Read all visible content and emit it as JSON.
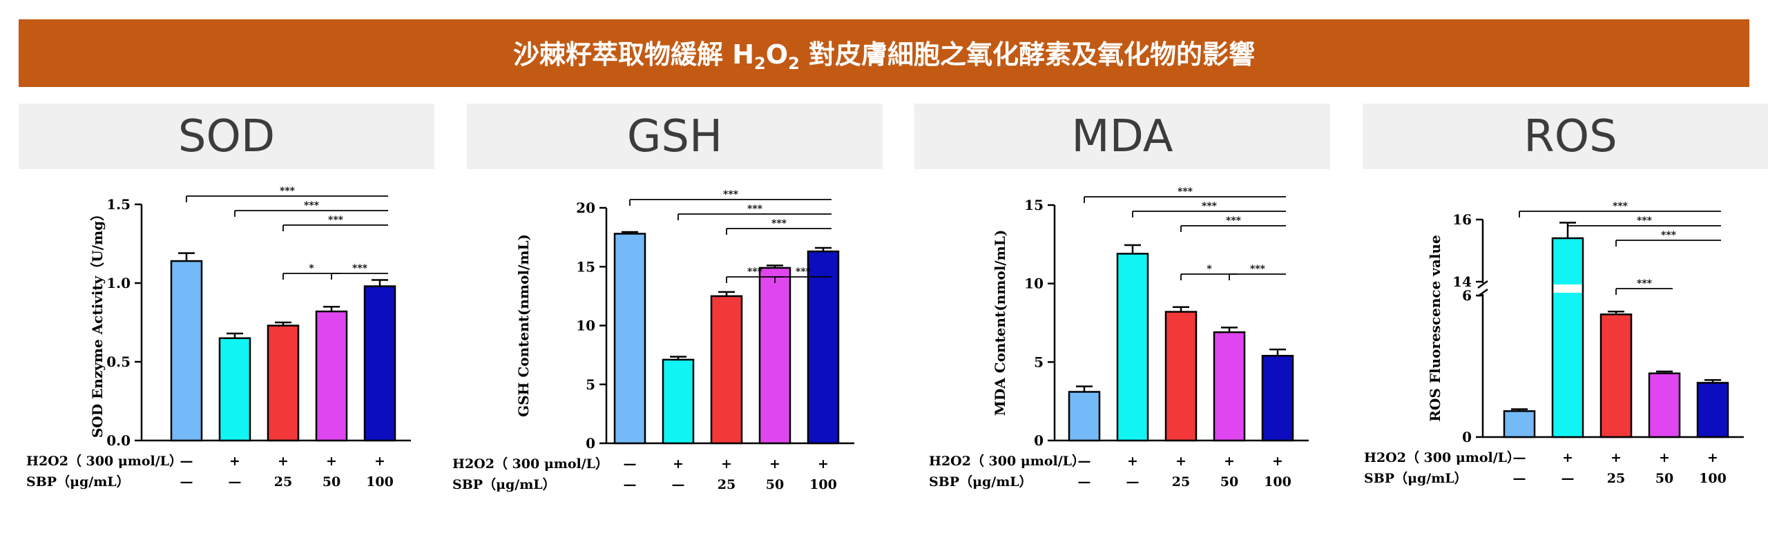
{
  "banner": {
    "title_pre": "沙棘籽萃取物緩解 H",
    "sub1": "2",
    "mid": "O",
    "sub2": "2",
    "title_post": " 對皮膚細胞之氧化酵素及氧化物的影響",
    "color": "#c25a14"
  },
  "panels": [
    {
      "title": "SOD"
    },
    {
      "title": "GSH"
    },
    {
      "title": "MDA"
    },
    {
      "title": "ROS"
    }
  ],
  "bar_colors": [
    "#74b9f8",
    "#10f4f4",
    "#f23838",
    "#e046ef",
    "#0b0dbf"
  ],
  "conditions": {
    "h2o2_label": "H2O2（ 300 μmol/L）",
    "sbp_label": "SBP（μg/mL）",
    "h2o2": [
      "—",
      "+",
      "+",
      "+",
      "+"
    ],
    "sbp": [
      "—",
      "—",
      "25",
      "50",
      "100"
    ]
  },
  "chart_data": [
    {
      "type": "bar",
      "ylabel": "SOD Enzyme Activity（U/mg）",
      "ylim": [
        0,
        1.5
      ],
      "yticks": [
        "0.0",
        "0.5",
        "1.0",
        "1.5"
      ],
      "yticks_values": [
        0,
        0.5,
        1.0,
        1.5
      ],
      "values": [
        1.14,
        0.65,
        0.73,
        0.82,
        0.98
      ],
      "errors": [
        0.05,
        0.03,
        0.02,
        0.03,
        0.04
      ],
      "significance": [
        {
          "from": 0,
          "to": 4,
          "label": "***"
        },
        {
          "from": 1,
          "to": 4,
          "label": "***"
        },
        {
          "from": 2,
          "to": 4,
          "label": "***"
        },
        {
          "from": 2,
          "to": 3,
          "label": "*"
        },
        {
          "from": 3,
          "to": 4,
          "label": "***"
        }
      ]
    },
    {
      "type": "bar",
      "ylabel": "GSH Content(nmol/mL)",
      "ylim": [
        0,
        20
      ],
      "yticks": [
        "0",
        "5",
        "10",
        "15",
        "20"
      ],
      "yticks_values": [
        0,
        5,
        10,
        15,
        20
      ],
      "values": [
        17.8,
        7.1,
        12.5,
        14.9,
        16.3
      ],
      "errors": [
        0.15,
        0.25,
        0.35,
        0.2,
        0.3
      ],
      "significance": [
        {
          "from": 0,
          "to": 4,
          "label": "***"
        },
        {
          "from": 1,
          "to": 4,
          "label": "***"
        },
        {
          "from": 2,
          "to": 4,
          "label": "***"
        },
        {
          "from": 2,
          "to": 3,
          "label": "***"
        },
        {
          "from": 3,
          "to": 4,
          "label": "***"
        }
      ]
    },
    {
      "type": "bar",
      "ylabel": "MDA Content(nmol/mL)",
      "ylim": [
        0,
        15
      ],
      "yticks": [
        "0",
        "5",
        "10",
        "15"
      ],
      "yticks_values": [
        0,
        5,
        10,
        15
      ],
      "values": [
        3.1,
        11.9,
        8.2,
        6.9,
        5.4
      ],
      "errors": [
        0.35,
        0.55,
        0.3,
        0.3,
        0.4
      ],
      "significance": [
        {
          "from": 0,
          "to": 4,
          "label": "***"
        },
        {
          "from": 1,
          "to": 4,
          "label": "***"
        },
        {
          "from": 2,
          "to": 4,
          "label": "***"
        },
        {
          "from": 2,
          "to": 3,
          "label": "*"
        },
        {
          "from": 3,
          "to": 4,
          "label": "***"
        }
      ]
    },
    {
      "type": "bar",
      "ylabel": "ROS Fluorescence value",
      "axis_break": [
        6,
        14
      ],
      "ylim": [
        0,
        16
      ],
      "yticks": [
        "0",
        "6",
        "14",
        "16"
      ],
      "yticks_values": [
        0,
        6,
        14,
        16
      ],
      "values": [
        1.1,
        15.4,
        5.2,
        2.7,
        2.3
      ],
      "errors": [
        0.08,
        0.5,
        0.12,
        0.08,
        0.12
      ],
      "significance": [
        {
          "from": 0,
          "to": 4,
          "label": "***"
        },
        {
          "from": 1,
          "to": 4,
          "label": "***"
        },
        {
          "from": 2,
          "to": 4,
          "label": "***"
        },
        {
          "from": 2,
          "to": 3,
          "label": "***"
        }
      ]
    }
  ]
}
